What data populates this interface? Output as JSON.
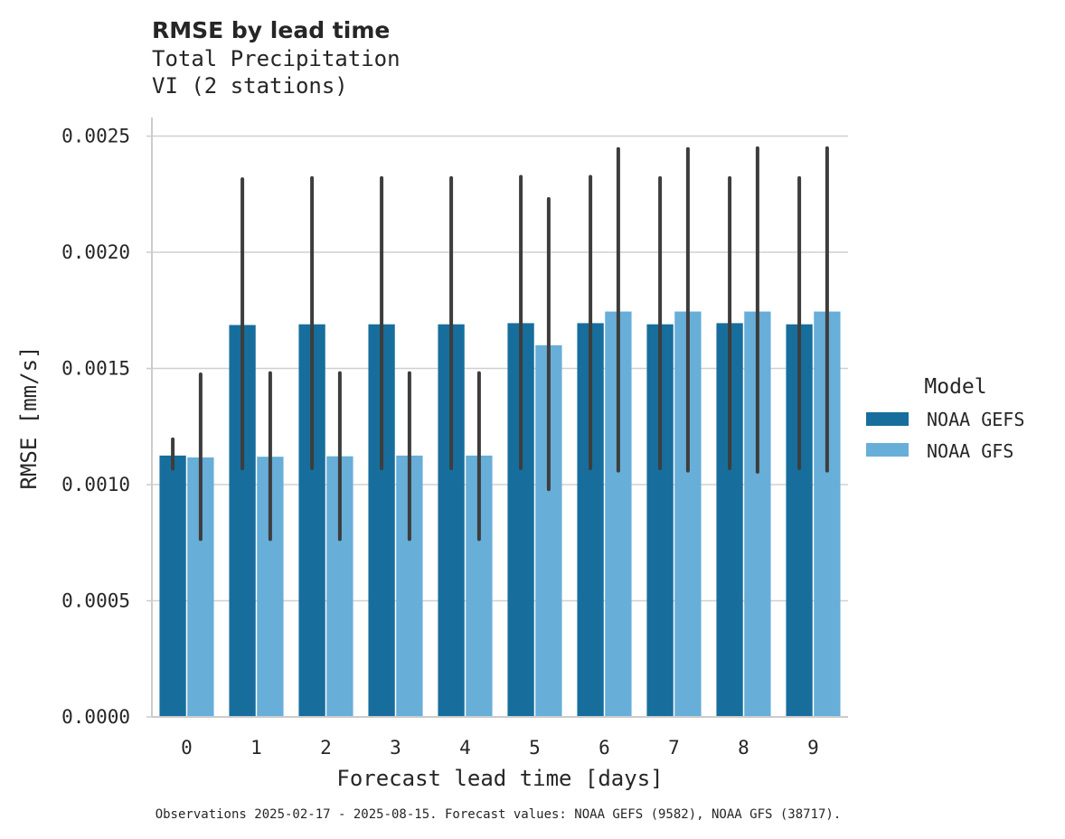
{
  "chart_data": {
    "type": "bar",
    "title": "RMSE by lead time",
    "subtitle_lines": [
      "Total Precipitation",
      "VI (2 stations)"
    ],
    "xlabel": "Forecast lead time [days]",
    "ylabel": "RMSE [mm/s]",
    "categories": [
      "0",
      "1",
      "2",
      "3",
      "4",
      "5",
      "6",
      "7",
      "8",
      "9"
    ],
    "ylim": [
      0,
      0.00258
    ],
    "yticks": [
      0.0,
      0.0005,
      0.001,
      0.0015,
      0.002,
      0.0025
    ],
    "ytick_labels": [
      "0.0000",
      "0.0005",
      "0.0010",
      "0.0015",
      "0.0020",
      "0.0025"
    ],
    "grid": "horizontal",
    "legend": {
      "title": "Model",
      "placement": "right"
    },
    "series": [
      {
        "name": "NOAA GEFS",
        "color": "#176e9c",
        "values": [
          0.001125,
          0.001687,
          0.00169,
          0.00169,
          0.00169,
          0.001695,
          0.001695,
          0.00169,
          0.001695,
          0.00169
        ],
        "error_low": [
          0.001068,
          0.00107,
          0.00107,
          0.00107,
          0.00107,
          0.00107,
          0.00107,
          0.00107,
          0.00107,
          0.00107
        ],
        "error_high": [
          0.001195,
          0.002315,
          0.00232,
          0.00232,
          0.00232,
          0.002325,
          0.002325,
          0.00232,
          0.00232,
          0.00232
        ]
      },
      {
        "name": "NOAA GFS",
        "color": "#67aed8",
        "values": [
          0.001117,
          0.00112,
          0.001122,
          0.001125,
          0.001125,
          0.0016,
          0.001745,
          0.001745,
          0.001745,
          0.001745
        ],
        "error_low": [
          0.000765,
          0.000765,
          0.000765,
          0.000765,
          0.000765,
          0.00098,
          0.00106,
          0.00106,
          0.001055,
          0.00106
        ],
        "error_high": [
          0.001475,
          0.00148,
          0.00148,
          0.00148,
          0.00148,
          0.00223,
          0.002445,
          0.002445,
          0.002448,
          0.002448
        ]
      }
    ],
    "footnote": "Observations 2025-02-17 - 2025-08-15. Forecast values: NOAA GEFS (9582), NOAA GFS (38717)."
  }
}
